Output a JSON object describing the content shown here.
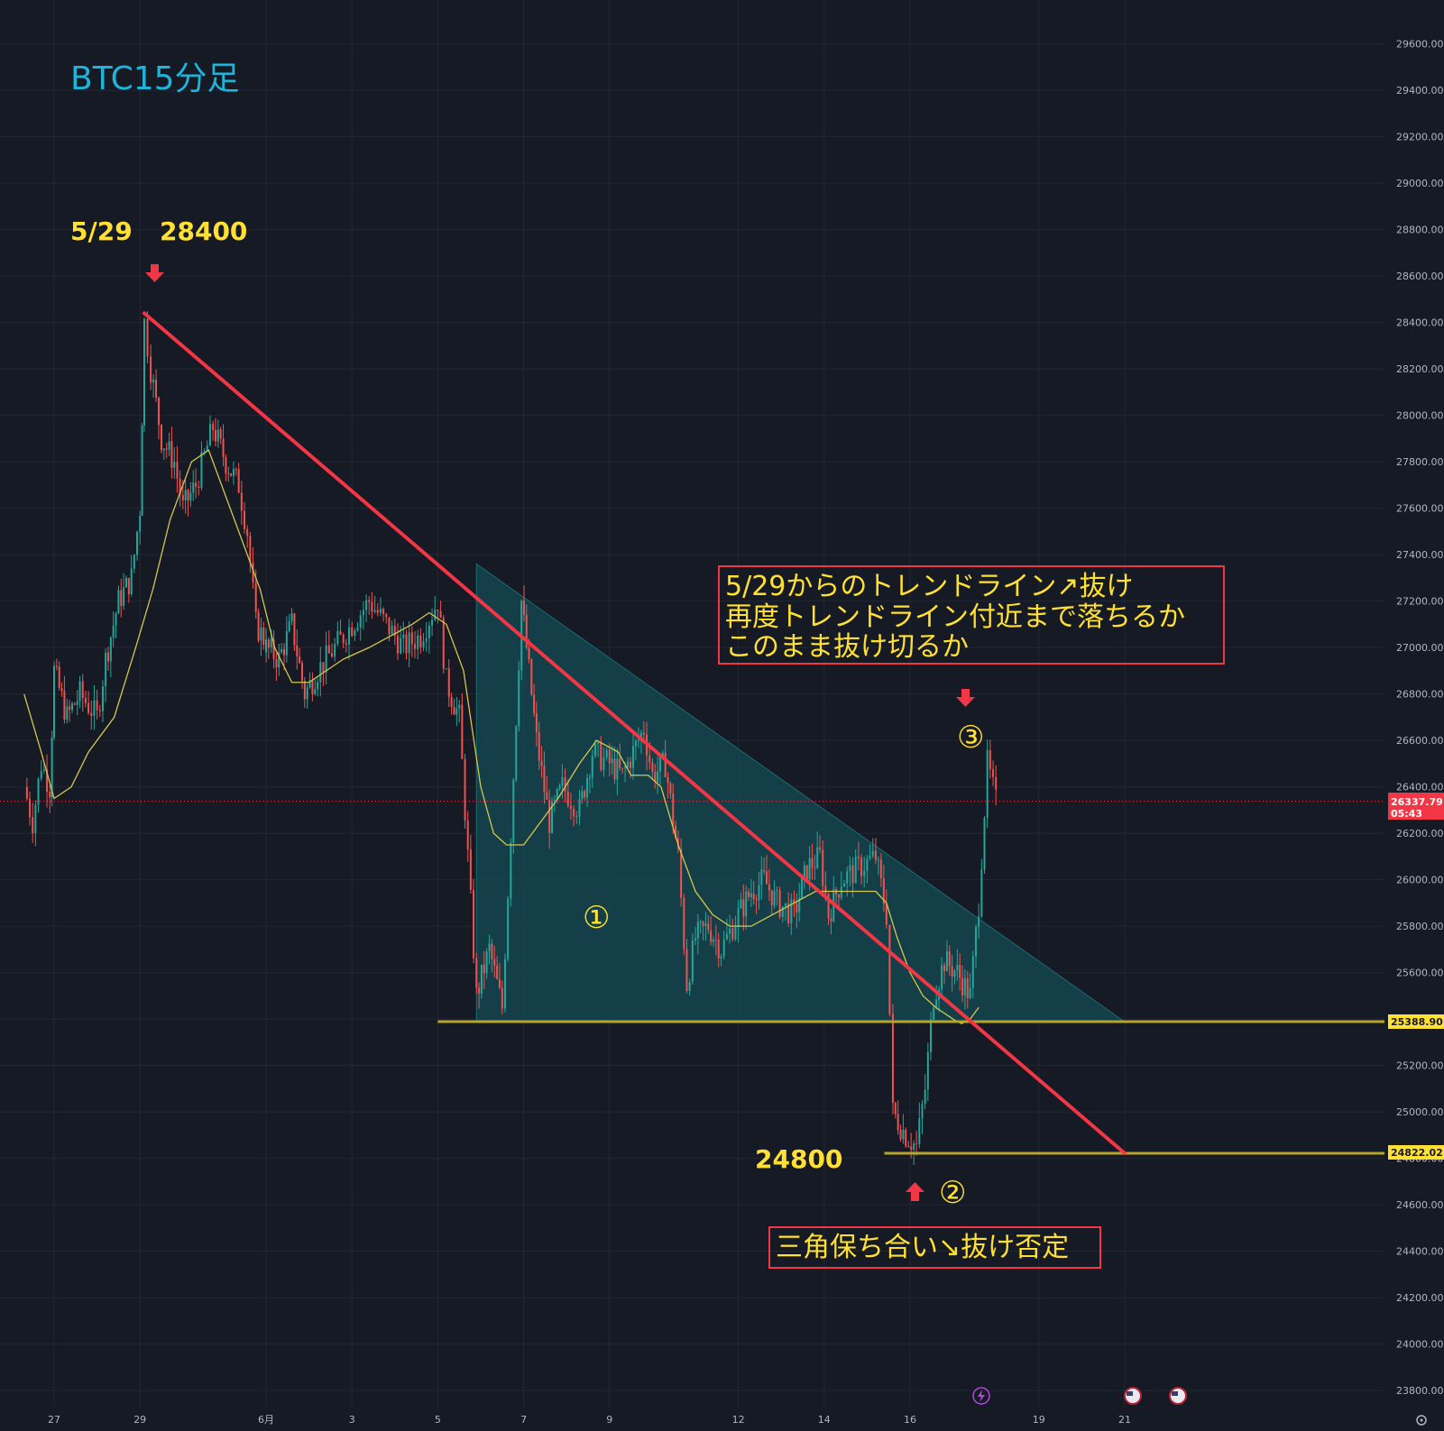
{
  "title": "BTC15分足",
  "colors": {
    "background": "#161a25",
    "trendline": "#f23645",
    "support": "#b5a52a",
    "triangle_fill": "#14474f",
    "ma": "#d4c74a",
    "annotation_text": "#ffe033",
    "bull": "#26a69a",
    "bear": "#ef5350",
    "price_tag": "#f23645",
    "level_tag": "#ffe033"
  },
  "chart_data": {
    "type": "candlestick",
    "timeframe": "15分",
    "y_axis": {
      "min": 23700,
      "max": 29650,
      "ticks": [
        "23800.00",
        "24000.00",
        "24200.00",
        "24400.00",
        "24600.00",
        "24800.00",
        "25000.00",
        "25200.00",
        "25400.00",
        "25600.00",
        "25800.00",
        "26000.00",
        "26200.00",
        "26400.00",
        "26600.00",
        "26800.00",
        "27000.00",
        "27200.00",
        "27400.00",
        "27600.00",
        "27800.00",
        "28000.00",
        "28200.00",
        "28400.00",
        "28600.00",
        "28800.00",
        "29000.00",
        "29200.00",
        "29400.00",
        "29600.00"
      ]
    },
    "x_axis": {
      "ticks": [
        {
          "label": "27",
          "day": 27
        },
        {
          "label": "29",
          "day": 29
        },
        {
          "label": "6月",
          "day": 32
        },
        {
          "label": "3",
          "day": 34
        },
        {
          "label": "5",
          "day": 36
        },
        {
          "label": "7",
          "day": 38
        },
        {
          "label": "9",
          "day": 40
        },
        {
          "label": "12",
          "day": 43
        },
        {
          "label": "14",
          "day": 45
        },
        {
          "label": "16",
          "day": 47
        },
        {
          "label": "19",
          "day": 50
        },
        {
          "label": "21",
          "day": 52
        }
      ]
    },
    "price_path": [
      [
        26.3,
        26400
      ],
      [
        26.5,
        26250
      ],
      [
        26.7,
        26500
      ],
      [
        26.9,
        26400
      ],
      [
        27.0,
        26900
      ],
      [
        27.3,
        26700
      ],
      [
        27.6,
        26800
      ],
      [
        28.0,
        26700
      ],
      [
        28.2,
        26950
      ],
      [
        28.5,
        27200
      ],
      [
        28.8,
        27300
      ],
      [
        29.0,
        27600
      ],
      [
        29.1,
        28400
      ],
      [
        29.25,
        28200
      ],
      [
        29.5,
        27900
      ],
      [
        29.8,
        27800
      ],
      [
        30.0,
        27600
      ],
      [
        30.3,
        27700
      ],
      [
        30.7,
        27950
      ],
      [
        31.0,
        27800
      ],
      [
        31.3,
        27700
      ],
      [
        31.5,
        27500
      ],
      [
        31.7,
        27100
      ],
      [
        32.0,
        27000
      ],
      [
        32.3,
        26950
      ],
      [
        32.6,
        27100
      ],
      [
        32.9,
        26800
      ],
      [
        33.2,
        26900
      ],
      [
        33.6,
        27000
      ],
      [
        34.0,
        27100
      ],
      [
        34.4,
        27200
      ],
      [
        34.8,
        27100
      ],
      [
        35.2,
        27000
      ],
      [
        35.6,
        27050
      ],
      [
        36.0,
        27200
      ],
      [
        36.2,
        26850
      ],
      [
        36.5,
        26700
      ],
      [
        36.9,
        25500
      ],
      [
        37.2,
        25700
      ],
      [
        37.5,
        25450
      ],
      [
        37.7,
        26200
      ],
      [
        37.95,
        27200
      ],
      [
        38.3,
        26600
      ],
      [
        38.6,
        26250
      ],
      [
        38.9,
        26400
      ],
      [
        39.3,
        26300
      ],
      [
        39.6,
        26550
      ],
      [
        40.0,
        26500
      ],
      [
        40.3,
        26450
      ],
      [
        40.8,
        26650
      ],
      [
        41.0,
        26450
      ],
      [
        41.3,
        26500
      ],
      [
        41.6,
        26100
      ],
      [
        41.8,
        25550
      ],
      [
        42.0,
        25750
      ],
      [
        42.3,
        25800
      ],
      [
        42.6,
        25700
      ],
      [
        43.0,
        25850
      ],
      [
        43.3,
        25950
      ],
      [
        43.6,
        26000
      ],
      [
        43.9,
        25900
      ],
      [
        44.3,
        25850
      ],
      [
        44.6,
        26050
      ],
      [
        44.9,
        26100
      ],
      [
        45.1,
        25850
      ],
      [
        45.4,
        26000
      ],
      [
        45.8,
        26050
      ],
      [
        46.2,
        26100
      ],
      [
        46.45,
        25850
      ],
      [
        46.6,
        25000
      ],
      [
        46.9,
        24900
      ],
      [
        47.15,
        24850
      ],
      [
        47.35,
        25100
      ],
      [
        47.55,
        25500
      ],
      [
        47.8,
        25650
      ],
      [
        48.1,
        25600
      ],
      [
        48.4,
        25500
      ],
      [
        48.6,
        25900
      ],
      [
        48.8,
        26500
      ],
      [
        49.0,
        26337
      ]
    ],
    "moving_average": [
      [
        26.3,
        26800
      ],
      [
        26.7,
        26550
      ],
      [
        27.0,
        26350
      ],
      [
        27.4,
        26400
      ],
      [
        27.8,
        26550
      ],
      [
        28.4,
        26700
      ],
      [
        28.9,
        27000
      ],
      [
        29.3,
        27250
      ],
      [
        29.7,
        27550
      ],
      [
        30.2,
        27800
      ],
      [
        30.6,
        27850
      ],
      [
        30.9,
        27700
      ],
      [
        31.4,
        27450
      ],
      [
        31.8,
        27250
      ],
      [
        32.2,
        27000
      ],
      [
        32.6,
        26850
      ],
      [
        33.0,
        26850
      ],
      [
        33.4,
        26900
      ],
      [
        33.8,
        26950
      ],
      [
        34.4,
        27000
      ],
      [
        34.9,
        27050
      ],
      [
        35.4,
        27100
      ],
      [
        35.8,
        27150
      ],
      [
        36.2,
        27100
      ],
      [
        36.6,
        26900
      ],
      [
        37.0,
        26400
      ],
      [
        37.3,
        26200
      ],
      [
        37.6,
        26150
      ],
      [
        38.0,
        26150
      ],
      [
        38.4,
        26250
      ],
      [
        38.8,
        26350
      ],
      [
        39.3,
        26500
      ],
      [
        39.7,
        26600
      ],
      [
        40.2,
        26550
      ],
      [
        40.5,
        26450
      ],
      [
        40.9,
        26450
      ],
      [
        41.2,
        26400
      ],
      [
        41.6,
        26150
      ],
      [
        42.0,
        25950
      ],
      [
        42.4,
        25850
      ],
      [
        42.8,
        25800
      ],
      [
        43.3,
        25800
      ],
      [
        43.8,
        25850
      ],
      [
        44.3,
        25900
      ],
      [
        44.8,
        25950
      ],
      [
        45.2,
        25950
      ],
      [
        45.7,
        25950
      ],
      [
        46.2,
        25950
      ],
      [
        46.45,
        25900
      ],
      [
        46.7,
        25750
      ],
      [
        47.0,
        25600
      ],
      [
        47.3,
        25500
      ],
      [
        47.6,
        25450
      ],
      [
        48.0,
        25400
      ],
      [
        48.2,
        25380
      ],
      [
        48.4,
        25400
      ],
      [
        48.6,
        25450
      ]
    ],
    "current_price": "26337.79",
    "countdown": "05:43",
    "support_level": "25388.90",
    "low_level": "24822.02",
    "trendline": {
      "start": [
        29.1,
        28440
      ],
      "through": [
        47.2,
        25970
      ],
      "end": [
        52.0,
        24822
      ]
    },
    "triangle": [
      [
        36.9,
        27360
      ],
      [
        36.9,
        25388
      ],
      [
        52.0,
        25388
      ]
    ]
  },
  "annotations": {
    "peak_date": "5/29",
    "peak_price": "28400",
    "low_price": "24800",
    "marker_1": "①",
    "marker_2": "②",
    "marker_3": "③",
    "box_upper_lines": [
      "5/29からのトレンドライン↗抜け",
      "再度トレンドライン付近まで落ちるか",
      "このまま抜け切るか"
    ],
    "box_lower": "三角保ち合い↘抜け否定"
  }
}
